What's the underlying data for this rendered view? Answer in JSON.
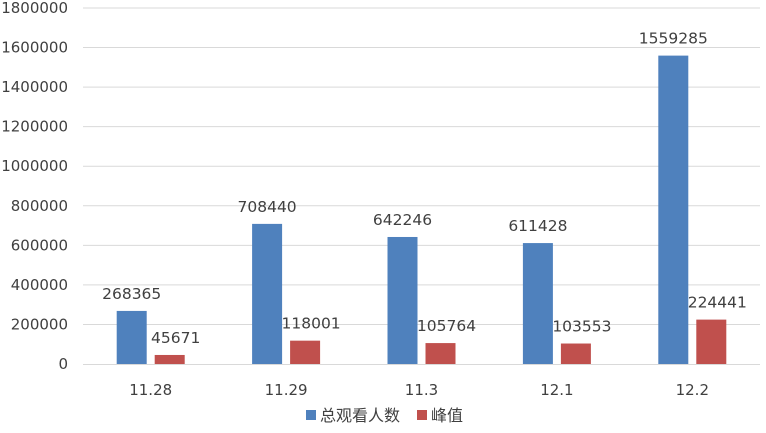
{
  "chart_data": {
    "type": "bar",
    "categories": [
      "11.28",
      "11.29",
      "11.3",
      "12.1",
      "12.2"
    ],
    "series": [
      {
        "name": "总观看人数",
        "values": [
          268365,
          708440,
          642246,
          611428,
          1559285
        ],
        "color": "#4F81BD"
      },
      {
        "name": "峰值",
        "values": [
          45671,
          118001,
          105764,
          103553,
          224441
        ],
        "color": "#C0504D"
      }
    ],
    "y_ticks": [
      "0",
      "200000",
      "400000",
      "600000",
      "800000",
      "1000000",
      "1200000",
      "1400000",
      "1600000",
      "1800000"
    ],
    "ylim": [
      0,
      1800000
    ],
    "data_labels": true,
    "grid": true,
    "gridline_color": "#D9D9D9",
    "legend_position": "bottom",
    "title": "",
    "xlabel": "",
    "ylabel": ""
  }
}
